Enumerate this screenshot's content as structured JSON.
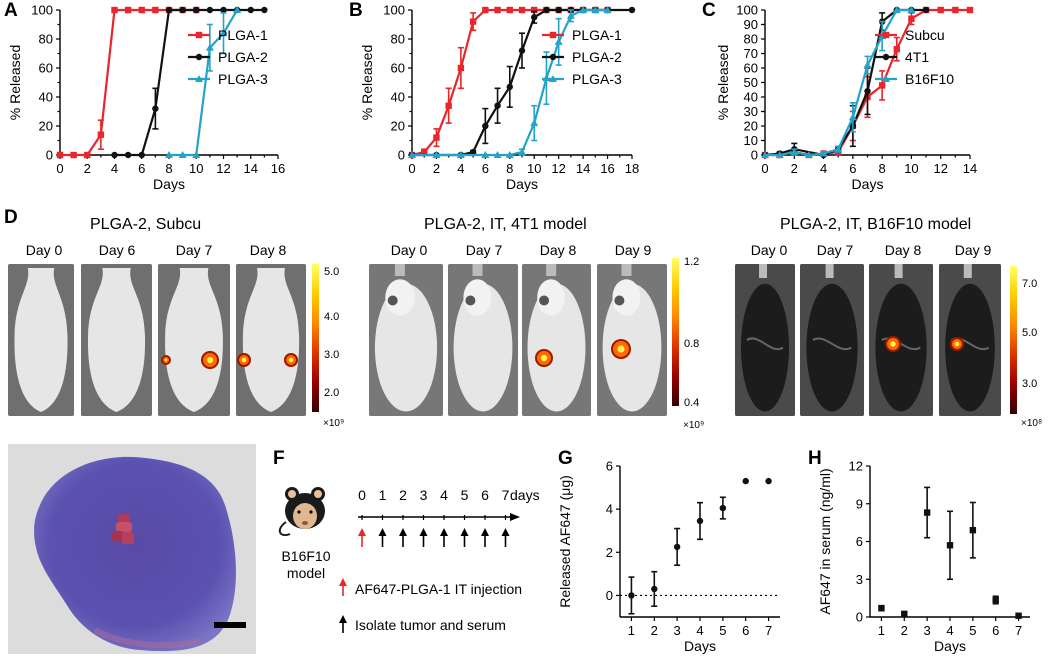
{
  "panels": {
    "A": "A",
    "B": "B",
    "C": "C",
    "D": "D",
    "E": "E",
    "F": "F",
    "G": "G",
    "H": "H"
  },
  "colors": {
    "plga1": "#e8262b",
    "plga2": "#111111",
    "plga3": "#23a3c8",
    "subcu": "#e8262b",
    "t4t1": "#111111",
    "b16": "#23a3c8"
  },
  "chart_data": [
    {
      "id": "A",
      "type": "line",
      "xlabel": "Days",
      "ylabel": "% Released",
      "xlim": [
        0,
        16
      ],
      "ylim": [
        0,
        100
      ],
      "xticks": [
        0,
        2,
        4,
        6,
        8,
        10,
        12,
        14,
        16
      ],
      "yticks": [
        0,
        20,
        40,
        60,
        80,
        100
      ],
      "legend": "top-right",
      "series": [
        {
          "name": "PLGA-1",
          "color": "#e8262b",
          "marker": "square",
          "x": [
            0,
            1,
            2,
            3,
            4,
            5,
            6,
            7,
            8,
            9,
            10
          ],
          "y": [
            0,
            0,
            0,
            14,
            100,
            100,
            100,
            100,
            100,
            100,
            100
          ],
          "err": [
            0,
            0,
            0,
            10,
            0,
            0,
            0,
            0,
            0,
            0,
            0
          ]
        },
        {
          "name": "PLGA-2",
          "color": "#111111",
          "marker": "circle",
          "x": [
            4,
            5,
            6,
            7,
            8,
            9,
            10,
            11,
            12,
            13,
            14,
            15
          ],
          "y": [
            0,
            0,
            0,
            32,
            100,
            100,
            100,
            100,
            100,
            100,
            100,
            100
          ],
          "err": [
            0,
            0,
            0,
            14,
            0,
            0,
            0,
            0,
            0,
            0,
            0,
            0
          ]
        },
        {
          "name": "PLGA-3",
          "color": "#23a3c8",
          "marker": "triangle",
          "x": [
            8,
            9,
            10,
            11,
            12,
            13
          ],
          "y": [
            0,
            0,
            0,
            74,
            84,
            100
          ],
          "err": [
            0,
            0,
            0,
            16,
            14,
            0
          ]
        }
      ]
    },
    {
      "id": "B",
      "type": "line",
      "xlabel": "Days",
      "ylabel": "% Released",
      "xlim": [
        0,
        18
      ],
      "ylim": [
        0,
        100
      ],
      "xticks": [
        0,
        2,
        4,
        6,
        8,
        10,
        12,
        14,
        16,
        18
      ],
      "yticks": [
        0,
        20,
        40,
        60,
        80,
        100
      ],
      "legend": "top-right",
      "series": [
        {
          "name": "PLGA-1",
          "color": "#e8262b",
          "marker": "square",
          "x": [
            0,
            1,
            2,
            3,
            4,
            5,
            6,
            7,
            8,
            9,
            10,
            11,
            12,
            13,
            14,
            15,
            16
          ],
          "y": [
            0,
            2,
            12,
            34,
            60,
            92,
            100,
            100,
            100,
            100,
            100,
            100,
            100,
            100,
            100,
            100,
            100
          ],
          "err": [
            0,
            2,
            6,
            12,
            14,
            6,
            0,
            0,
            0,
            0,
            0,
            0,
            0,
            0,
            0,
            0,
            0
          ]
        },
        {
          "name": "PLGA-2",
          "color": "#111111",
          "marker": "circle",
          "x": [
            0,
            2,
            4,
            5,
            6,
            7,
            8,
            9,
            10,
            11,
            12,
            13,
            14,
            15,
            16,
            18
          ],
          "y": [
            0,
            0,
            0,
            2,
            20,
            34,
            47,
            72,
            95,
            100,
            100,
            100,
            100,
            100,
            100,
            100
          ],
          "err": [
            0,
            0,
            0,
            1,
            12,
            12,
            14,
            12,
            4,
            0,
            0,
            0,
            0,
            0,
            0,
            0
          ]
        },
        {
          "name": "PLGA-3",
          "color": "#23a3c8",
          "marker": "triangle",
          "x": [
            0,
            2,
            4,
            6,
            7,
            8,
            9,
            10,
            11,
            12,
            13,
            14,
            15,
            16
          ],
          "y": [
            0,
            0,
            0,
            0,
            0,
            0,
            2,
            22,
            53,
            78,
            96,
            100,
            100,
            100
          ],
          "err": [
            0,
            0,
            0,
            0,
            0,
            0,
            2,
            12,
            18,
            16,
            4,
            0,
            0,
            0
          ]
        }
      ]
    },
    {
      "id": "C",
      "type": "line",
      "xlabel": "Days",
      "ylabel": "% Released",
      "xlim": [
        0,
        14
      ],
      "ylim": [
        0,
        100
      ],
      "xticks": [
        0,
        2,
        4,
        6,
        8,
        10,
        12,
        14
      ],
      "yticks": [
        0,
        10,
        20,
        30,
        40,
        50,
        60,
        70,
        80,
        90,
        100
      ],
      "legend": "top-right",
      "series": [
        {
          "name": "Subcu",
          "color": "#e8262b",
          "marker": "square",
          "x": [
            0,
            1,
            2,
            3,
            4,
            5,
            6,
            7,
            8,
            9,
            10,
            11,
            12,
            13,
            14
          ],
          "y": [
            0,
            0,
            2,
            0,
            1,
            2,
            20,
            40,
            48,
            73,
            94,
            100,
            100,
            100,
            100
          ],
          "err": [
            0,
            0,
            2,
            0,
            1,
            2,
            10,
            14,
            10,
            8,
            4,
            0,
            0,
            0,
            0
          ]
        },
        {
          "name": "4T1",
          "color": "#111111",
          "marker": "circle",
          "x": [
            0,
            1,
            2,
            4,
            5,
            6,
            7,
            8,
            9,
            10,
            11
          ],
          "y": [
            0,
            1,
            4,
            0,
            4,
            20,
            44,
            92,
            100,
            100,
            100
          ],
          "err": [
            0,
            1,
            4,
            0,
            2,
            14,
            16,
            6,
            0,
            0,
            0
          ]
        },
        {
          "name": "B16F10",
          "color": "#23a3c8",
          "marker": "triangle",
          "x": [
            0,
            1,
            2,
            3,
            4,
            5,
            6,
            7,
            8,
            9,
            10
          ],
          "y": [
            0,
            0,
            2,
            0,
            1,
            4,
            26,
            62,
            82,
            100,
            100
          ],
          "err": [
            0,
            0,
            2,
            0,
            1,
            2,
            10,
            6,
            10,
            0,
            0
          ]
        }
      ]
    },
    {
      "id": "G",
      "type": "scatter",
      "xlabel": "Days",
      "ylabel": "Released AF647 (μg)",
      "xlim": [
        0.5,
        7.5
      ],
      "ylim": [
        -1,
        6
      ],
      "xticks": [
        1,
        2,
        3,
        4,
        5,
        6,
        7
      ],
      "yticks": [
        0,
        2,
        4,
        6
      ],
      "dotted_zero": true,
      "series": [
        {
          "name": "",
          "color": "#111111",
          "marker": "circle",
          "x": [
            1,
            2,
            3,
            4,
            5,
            6,
            7
          ],
          "y": [
            0.0,
            0.3,
            2.25,
            3.45,
            4.05,
            5.3,
            5.3
          ],
          "err": [
            0.85,
            0.8,
            0.85,
            0.85,
            0.5,
            0,
            0
          ]
        }
      ]
    },
    {
      "id": "H",
      "type": "scatter",
      "xlabel": "Days",
      "ylabel": "AF647 in serum (ng/ml)",
      "xlim": [
        0.5,
        7.5
      ],
      "ylim": [
        0,
        12
      ],
      "xticks": [
        1,
        2,
        3,
        4,
        5,
        6,
        7
      ],
      "yticks": [
        0,
        3,
        6,
        9,
        12
      ],
      "series": [
        {
          "name": "",
          "color": "#111111",
          "marker": "square",
          "x": [
            1,
            2,
            3,
            4,
            5,
            6,
            7
          ],
          "y": [
            0.7,
            0.25,
            8.3,
            5.7,
            6.9,
            1.35,
            0.1
          ],
          "err": [
            0.2,
            0.1,
            2.0,
            2.7,
            2.2,
            0.3,
            0.05
          ]
        }
      ]
    }
  ],
  "panel_d": {
    "groups": [
      {
        "title": "PLGA-2, Subcu",
        "days": [
          "Day 0",
          "Day 6",
          "Day 7",
          "Day 8"
        ],
        "colorbar_ticks": [
          "5.0",
          "4.0",
          "3.0",
          "2.0"
        ],
        "scale": "×10⁹"
      },
      {
        "title": "PLGA-2, IT, 4T1 model",
        "days": [
          "Day 0",
          "Day 7",
          "Day 8",
          "Day 9"
        ],
        "colorbar_ticks": [
          "1.2",
          "0.8",
          "0.4"
        ],
        "scale": "×10⁹"
      },
      {
        "title": "PLGA-2, IT, B16F10 model",
        "days": [
          "Day 0",
          "Day 7",
          "Day 8",
          "Day 9"
        ],
        "colorbar_ticks": [
          "7.0",
          "5.0",
          "3.0"
        ],
        "scale": "×10⁸"
      }
    ]
  },
  "panel_f": {
    "model_label": "B16F10\nmodel",
    "timeline_days": [
      "0",
      "1",
      "2",
      "3",
      "4",
      "5",
      "6",
      "7"
    ],
    "days_unit": "days",
    "legend_red": "AF647-PLGA-1 IT injection",
    "legend_black": "Isolate tumor and serum"
  }
}
